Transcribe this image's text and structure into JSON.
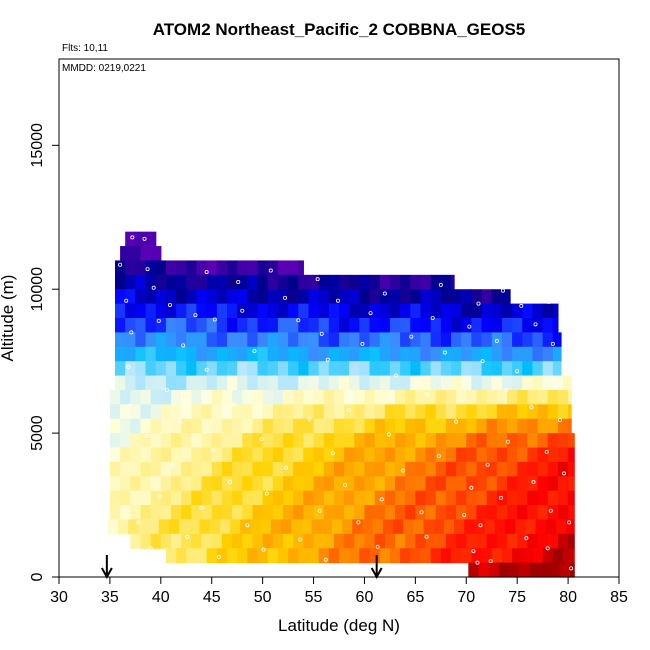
{
  "chart_data": {
    "type": "heatmap",
    "title": "ATOM2 Northeast_Pacific_2 COBBNA_GEOS5",
    "annotations": [
      "Flts: 10,11",
      "MMDD: 0219,0221"
    ],
    "xlabel": "Latitude (deg N)",
    "ylabel": "Altitude (m)",
    "xlim": [
      30,
      85
    ],
    "ylim": [
      0,
      18000
    ],
    "x_ticks": [
      30,
      35,
      40,
      45,
      50,
      55,
      60,
      65,
      70,
      75,
      80,
      85
    ],
    "y_ticks": [
      0,
      5000,
      10000,
      15000
    ],
    "arrows_at_latitude": [
      34.7,
      61.2
    ],
    "grid": false,
    "curtain_rows": [
      {
        "z0": 11500,
        "z1": 12000,
        "x0": 36.5,
        "x1": 39.5,
        "t0": 0.02,
        "t1": 0.0
      },
      {
        "z0": 11000,
        "z1": 11500,
        "x0": 36.0,
        "x1": 40.0,
        "t0": 0.04,
        "t1": 0.0
      },
      {
        "z0": 10500,
        "z1": 11000,
        "x0": 35.5,
        "x1": 54.0,
        "t0": 0.06,
        "t1": 0.01
      },
      {
        "z0": 10000,
        "z1": 10500,
        "x0": 35.5,
        "x1": 68.8,
        "t0": 0.1,
        "t1": 0.05
      },
      {
        "z0": 9500,
        "z1": 10000,
        "x0": 35.5,
        "x1": 74.3,
        "t0": 0.14,
        "t1": 0.08
      },
      {
        "z0": 9000,
        "z1": 9500,
        "x0": 35.5,
        "x1": 79.0,
        "t0": 0.18,
        "t1": 0.12
      },
      {
        "z0": 8500,
        "z1": 9000,
        "x0": 35.5,
        "x1": 79.0,
        "t0": 0.22,
        "t1": 0.16
      },
      {
        "z0": 8000,
        "z1": 8500,
        "x0": 35.5,
        "x1": 79.3,
        "t0": 0.26,
        "t1": 0.21
      },
      {
        "z0": 7500,
        "z1": 8000,
        "x0": 35.5,
        "x1": 79.3,
        "t0": 0.32,
        "t1": 0.27
      },
      {
        "z0": 7000,
        "z1": 7500,
        "x0": 35.5,
        "x1": 79.3,
        "t0": 0.38,
        "t1": 0.37
      },
      {
        "z0": 6500,
        "z1": 7000,
        "x0": 35.5,
        "x1": 80.3,
        "t0": 0.43,
        "t1": 0.5
      },
      {
        "z0": 6000,
        "z1": 6500,
        "x0": 35.0,
        "x1": 80.3,
        "t0": 0.46,
        "t1": 0.6
      },
      {
        "z0": 5500,
        "z1": 6000,
        "x0": 35.0,
        "x1": 80.3,
        "t0": 0.48,
        "t1": 0.7
      },
      {
        "z0": 5000,
        "z1": 5500,
        "x0": 35.0,
        "x1": 80.3,
        "t0": 0.49,
        "t1": 0.78
      },
      {
        "z0": 4500,
        "z1": 5000,
        "x0": 35.0,
        "x1": 80.6,
        "t0": 0.5,
        "t1": 0.84
      },
      {
        "z0": 4000,
        "z1": 4500,
        "x0": 35.0,
        "x1": 80.6,
        "t0": 0.51,
        "t1": 0.88
      },
      {
        "z0": 3500,
        "z1": 4000,
        "x0": 35.0,
        "x1": 80.6,
        "t0": 0.52,
        "t1": 0.9
      },
      {
        "z0": 3000,
        "z1": 3500,
        "x0": 35.0,
        "x1": 80.6,
        "t0": 0.53,
        "t1": 0.91
      },
      {
        "z0": 2500,
        "z1": 3000,
        "x0": 35.0,
        "x1": 80.6,
        "t0": 0.54,
        "t1": 0.92
      },
      {
        "z0": 2000,
        "z1": 2500,
        "x0": 35.0,
        "x1": 80.6,
        "t0": 0.55,
        "t1": 0.93
      },
      {
        "z0": 1500,
        "z1": 2000,
        "x0": 34.8,
        "x1": 80.6,
        "t0": 0.56,
        "t1": 0.94
      },
      {
        "z0": 1000,
        "z1": 1500,
        "x0": 37.0,
        "x1": 80.6,
        "t0": 0.57,
        "t1": 0.95
      },
      {
        "z0": 500,
        "z1": 1000,
        "x0": 40.5,
        "x1": 80.6,
        "t0": 0.6,
        "t1": 0.97
      },
      {
        "z0": 0,
        "z1": 500,
        "x0": 70.2,
        "x1": 80.6,
        "t0": 0.98,
        "t1": 1.0
      }
    ],
    "colors": {
      "scale": [
        "#5a00b4",
        "#00008c",
        "#0000ff",
        "#3c8cff",
        "#00bfff",
        "#b4e6ff",
        "#ffffe0",
        "#fff08c",
        "#ffd200",
        "#ff9600",
        "#ff3c00",
        "#ff0000",
        "#a00000"
      ],
      "marker": "#ffffff"
    },
    "markers": [
      [
        37.2,
        11800
      ],
      [
        38.4,
        11750
      ],
      [
        36.0,
        10850
      ],
      [
        38.7,
        10700
      ],
      [
        44.5,
        10600
      ],
      [
        50.8,
        10650
      ],
      [
        55.4,
        10350
      ],
      [
        47.6,
        10250
      ],
      [
        67.5,
        10150
      ],
      [
        39.3,
        10050
      ],
      [
        62.0,
        9850
      ],
      [
        73.6,
        9950
      ],
      [
        40.9,
        9450
      ],
      [
        36.6,
        9600
      ],
      [
        52.2,
        9700
      ],
      [
        57.4,
        9600
      ],
      [
        71.2,
        9500
      ],
      [
        75.4,
        9420
      ],
      [
        78.1,
        9560
      ],
      [
        43.4,
        9100
      ],
      [
        48.0,
        9250
      ],
      [
        60.6,
        9170
      ],
      [
        66.7,
        9000
      ],
      [
        39.8,
        8900
      ],
      [
        45.3,
        8950
      ],
      [
        53.5,
        8920
      ],
      [
        70.3,
        8700
      ],
      [
        76.8,
        8780
      ],
      [
        37.1,
        8500
      ],
      [
        55.8,
        8450
      ],
      [
        64.6,
        8350
      ],
      [
        42.2,
        8050
      ],
      [
        59.8,
        8100
      ],
      [
        73.0,
        8200
      ],
      [
        78.5,
        8100
      ],
      [
        49.2,
        7850
      ],
      [
        67.9,
        7800
      ],
      [
        36.8,
        7300
      ],
      [
        56.4,
        7550
      ],
      [
        71.6,
        7500
      ],
      [
        44.5,
        7200
      ],
      [
        63.1,
        7000
      ],
      [
        75.0,
        7150
      ],
      [
        78.8,
        6600
      ],
      [
        40.6,
        6500
      ],
      [
        52.9,
        6300
      ],
      [
        66.2,
        6350
      ],
      [
        73.9,
        6500
      ],
      [
        36.9,
        5950
      ],
      [
        47.2,
        6000
      ],
      [
        58.5,
        5800
      ],
      [
        76.4,
        5900
      ],
      [
        41.9,
        5400
      ],
      [
        54.6,
        5500
      ],
      [
        69.0,
        5400
      ],
      [
        79.2,
        5450
      ],
      [
        38.6,
        4900
      ],
      [
        49.9,
        4800
      ],
      [
        62.4,
        4950
      ],
      [
        74.1,
        4700
      ],
      [
        45.1,
        4400
      ],
      [
        56.9,
        4300
      ],
      [
        67.3,
        4200
      ],
      [
        77.9,
        4350
      ],
      [
        41.2,
        3900
      ],
      [
        52.3,
        3800
      ],
      [
        63.8,
        3700
      ],
      [
        72.1,
        3900
      ],
      [
        79.6,
        3600
      ],
      [
        46.8,
        3300
      ],
      [
        58.1,
        3200
      ],
      [
        70.5,
        3100
      ],
      [
        76.6,
        3300
      ],
      [
        39.9,
        2800
      ],
      [
        50.4,
        2900
      ],
      [
        61.7,
        2700
      ],
      [
        73.4,
        2750
      ],
      [
        44.0,
        2400
      ],
      [
        55.6,
        2300
      ],
      [
        65.6,
        2250
      ],
      [
        69.8,
        2150
      ],
      [
        78.3,
        2300
      ],
      [
        37.8,
        1900
      ],
      [
        48.5,
        1800
      ],
      [
        59.4,
        1900
      ],
      [
        71.4,
        1800
      ],
      [
        80.1,
        1900
      ],
      [
        42.6,
        1400
      ],
      [
        53.7,
        1300
      ],
      [
        66.1,
        1400
      ],
      [
        75.9,
        1350
      ],
      [
        39.0,
        1000
      ],
      [
        50.1,
        950
      ],
      [
        61.3,
        1050
      ],
      [
        70.7,
        900
      ],
      [
        78.0,
        1000
      ],
      [
        45.7,
        700
      ],
      [
        56.2,
        600
      ],
      [
        71.1,
        500
      ],
      [
        72.4,
        550
      ],
      [
        80.3,
        300
      ]
    ]
  }
}
